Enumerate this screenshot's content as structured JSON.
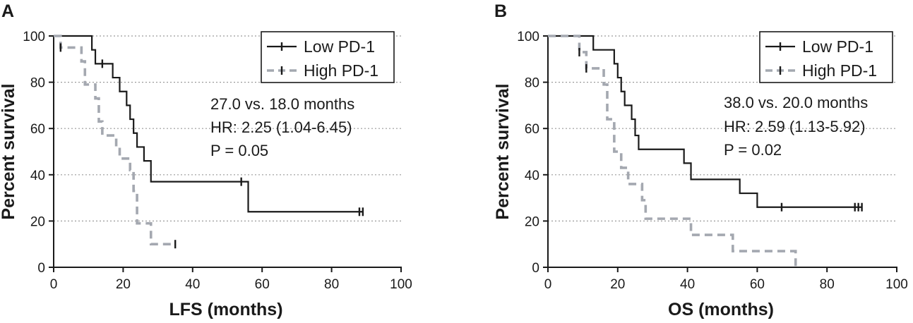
{
  "figure": {
    "background": "#ffffff",
    "grid_color": "#9a9a9a",
    "low_color": "#1a1a1a",
    "high_color": "#a4a8b0"
  },
  "chart_data": [
    {
      "panel": "A",
      "type": "line",
      "title": "",
      "xlabel": "LFS (months)",
      "ylabel": "Percent survival",
      "xlim": [
        0,
        100
      ],
      "ylim": [
        0,
        100
      ],
      "xticks": [
        0,
        20,
        40,
        60,
        80,
        100
      ],
      "yticks": [
        0,
        20,
        40,
        60,
        80,
        100
      ],
      "grid": "horizontal dotted",
      "legend_position": "top-right",
      "annotations": [
        "27.0 vs. 18.0 months",
        "HR: 2.25 (1.04-6.45)",
        "P = 0.05"
      ],
      "series": [
        {
          "name": "Low PD-1",
          "style": "solid",
          "steps": [
            [
              0,
              100
            ],
            [
              10,
              100
            ],
            [
              11,
              94
            ],
            [
              12,
              88
            ],
            [
              17,
              82
            ],
            [
              19,
              76
            ],
            [
              21,
              70
            ],
            [
              22,
              64
            ],
            [
              23,
              58
            ],
            [
              24,
              52
            ],
            [
              26,
              46
            ],
            [
              28,
              37
            ],
            [
              55,
              37
            ],
            [
              56,
              24
            ],
            [
              89,
              24
            ]
          ],
          "censor": [
            [
              14,
              88
            ],
            [
              54,
              37
            ],
            [
              88,
              24
            ],
            [
              89,
              24
            ]
          ]
        },
        {
          "name": "High PD-1",
          "style": "dashed",
          "steps": [
            [
              0,
              100
            ],
            [
              2,
              95
            ],
            [
              8,
              89
            ],
            [
              9,
              79
            ],
            [
              12,
              73
            ],
            [
              13,
              63
            ],
            [
              14,
              57
            ],
            [
              18,
              52
            ],
            [
              19,
              47
            ],
            [
              22,
              42
            ],
            [
              23,
              33
            ],
            [
              24,
              19
            ],
            [
              26,
              19
            ],
            [
              28,
              10
            ],
            [
              35,
              10
            ]
          ],
          "censor": [
            [
              2,
              95
            ],
            [
              35,
              10
            ]
          ]
        }
      ]
    },
    {
      "panel": "B",
      "type": "line",
      "title": "",
      "xlabel": "OS (months)",
      "ylabel": "Percent survival",
      "xlim": [
        0,
        100
      ],
      "ylim": [
        0,
        100
      ],
      "xticks": [
        0,
        20,
        40,
        60,
        80,
        100
      ],
      "yticks": [
        0,
        20,
        40,
        60,
        80,
        100
      ],
      "grid": "horizontal dotted",
      "legend_position": "top-right",
      "annotations": [
        "38.0 vs. 20.0 months",
        "HR: 2.59 (1.13-5.92)",
        "P = 0.02"
      ],
      "series": [
        {
          "name": "Low PD-1",
          "style": "solid",
          "steps": [
            [
              0,
              100
            ],
            [
              12,
              100
            ],
            [
              13,
              94
            ],
            [
              18,
              94
            ],
            [
              19,
              88
            ],
            [
              20,
              82
            ],
            [
              21,
              76
            ],
            [
              22,
              70
            ],
            [
              24,
              64
            ],
            [
              25,
              57
            ],
            [
              26,
              51
            ],
            [
              38,
              51
            ],
            [
              39,
              45
            ],
            [
              41,
              38
            ],
            [
              54,
              38
            ],
            [
              55,
              32
            ],
            [
              60,
              26
            ],
            [
              90,
              26
            ]
          ],
          "censor": [
            [
              67,
              26
            ],
            [
              88,
              26
            ],
            [
              89,
              26
            ],
            [
              90,
              26
            ]
          ]
        },
        {
          "name": "High PD-1",
          "style": "dashed",
          "steps": [
            [
              0,
              100
            ],
            [
              9,
              93
            ],
            [
              11,
              86
            ],
            [
              16,
              79
            ],
            [
              17,
              64
            ],
            [
              19,
              50
            ],
            [
              21,
              43
            ],
            [
              23,
              36
            ],
            [
              27,
              29
            ],
            [
              28,
              21
            ],
            [
              40,
              21
            ],
            [
              41,
              14
            ],
            [
              52,
              14
            ],
            [
              53,
              7
            ],
            [
              71,
              7
            ],
            [
              71,
              0
            ]
          ],
          "censor": [
            [
              9,
              93
            ],
            [
              11,
              86
            ]
          ]
        }
      ]
    }
  ]
}
